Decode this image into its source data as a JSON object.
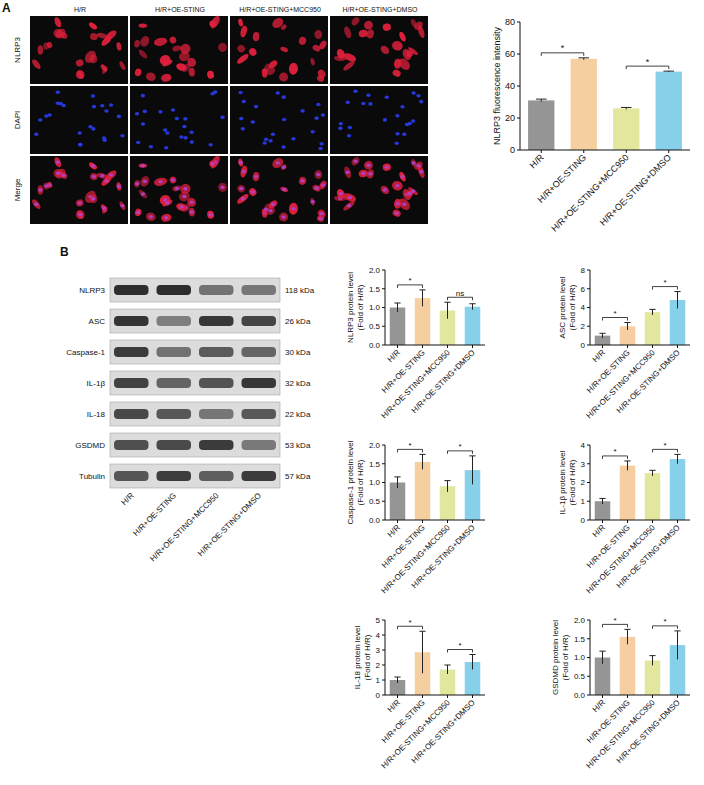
{
  "panel_a": {
    "letter": "A",
    "image_rows": [
      "NLRP3",
      "DAPI",
      "Merge"
    ],
    "image_columns": [
      "H/R",
      "H/R+OE-STING",
      "H/R+OE-STING+MCC950",
      "H/R+OE-STING+DMSO"
    ]
  },
  "panel_b": {
    "letter": "B",
    "blot": [
      {
        "name": "NLRP3",
        "size": "118 kDa"
      },
      {
        "name": "ASC",
        "size": "26 kDa"
      },
      {
        "name": "Caspase-1",
        "size": "30 kDa"
      },
      {
        "name": "IL-1β",
        "size": "32 kDa"
      },
      {
        "name": "IL-18",
        "size": "22 kDa"
      },
      {
        "name": "GSDMD",
        "size": "53 kDa"
      },
      {
        "name": "Tubulin",
        "size": "57 kDa"
      }
    ],
    "blot_lanes": [
      "H/R",
      "H/R+OE-STING",
      "H/R+OE-STING+MCC950",
      "H/R+OE-STING+DMSO"
    ]
  },
  "chart_data": [
    {
      "type": "bar",
      "ylabel": "NLRP3  fluorescence intensity",
      "categories": [
        "H/R",
        "H/R+OE-STING",
        "H/R+OE-STING+MCC950",
        "H/R+OE-STING+DMSO"
      ],
      "values": [
        31,
        57,
        26,
        49
      ],
      "errors": [
        0.8,
        0.6,
        0.6,
        0.3
      ],
      "colors": [
        "#959595",
        "#f6cfa0",
        "#e3e69d",
        "#87d0ea"
      ],
      "ylim": [
        0,
        80
      ],
      "yticks": [
        0,
        20,
        40,
        60,
        80
      ],
      "grid": false,
      "annotations": [
        {
          "text": "*",
          "between": [
            0,
            1
          ]
        },
        {
          "text": "*",
          "between": [
            2,
            3
          ]
        }
      ]
    },
    {
      "type": "bar",
      "ylabel": "NLRP3 protein level (Fold of H/R)",
      "categories": [
        "H/R",
        "H/R+OE-STING",
        "H/R+OE-STING+MCC950",
        "H/R+OE-STING+DMSO"
      ],
      "values": [
        1.0,
        1.25,
        0.92,
        1.02
      ],
      "errors": [
        0.12,
        0.22,
        0.22,
        0.08
      ],
      "colors": [
        "#959595",
        "#f6cfa0",
        "#e3e69d",
        "#87d0ea"
      ],
      "ylim": [
        0,
        2
      ],
      "yticks": [
        {
          "value": 0,
          "label": "0.0"
        },
        {
          "value": 0.5,
          "label": "0.5"
        },
        {
          "value": 1,
          "label": "1.0"
        },
        {
          "value": 1.5,
          "label": "1.5"
        },
        {
          "value": 2,
          "label": "2.0"
        }
      ],
      "grid": false,
      "annotations": [
        {
          "text": "*",
          "between": [
            0,
            1
          ]
        },
        {
          "text": "ns",
          "between": [
            2,
            3
          ]
        }
      ]
    },
    {
      "type": "bar",
      "ylabel": "ASC protein level (Fold of H/R)",
      "categories": [
        "H/R",
        "H/R+OE-STING",
        "H/R+OE-STING+MCC950",
        "H/R+OE-STING+DMSO"
      ],
      "values": [
        1.0,
        2.0,
        3.5,
        4.8
      ],
      "errors": [
        0.25,
        0.4,
        0.3,
        0.9
      ],
      "colors": [
        "#959595",
        "#f6cfa0",
        "#e3e69d",
        "#87d0ea"
      ],
      "ylim": [
        0,
        8
      ],
      "yticks": [
        0,
        2,
        4,
        6,
        8
      ],
      "grid": false,
      "annotations": [
        {
          "text": "*",
          "between": [
            0,
            1
          ]
        },
        {
          "text": "*",
          "between": [
            2,
            3
          ]
        }
      ]
    },
    {
      "type": "bar",
      "ylabel": "Caspase-1 protein level (Fold of H/R)",
      "categories": [
        "H/R",
        "H/R+OE-STING",
        "H/R+OE-STING+MCC950",
        "H/R+OE-STING+DMSO"
      ],
      "values": [
        1.0,
        1.55,
        0.9,
        1.33
      ],
      "errors": [
        0.15,
        0.2,
        0.15,
        0.38
      ],
      "colors": [
        "#959595",
        "#f6cfa0",
        "#e3e69d",
        "#87d0ea"
      ],
      "ylim": [
        0,
        2
      ],
      "yticks": [
        {
          "value": 0,
          "label": "0.0"
        },
        {
          "value": 0.5,
          "label": "0.5"
        },
        {
          "value": 1,
          "label": "1.0"
        },
        {
          "value": 1.5,
          "label": "1.5"
        },
        {
          "value": 2,
          "label": "2.0"
        }
      ],
      "grid": false,
      "annotations": [
        {
          "text": "*",
          "between": [
            0,
            1
          ]
        },
        {
          "text": "*",
          "between": [
            2,
            3
          ]
        }
      ]
    },
    {
      "type": "bar",
      "ylabel": "IL-1β protein level (Fold of H/R)",
      "categories": [
        "H/R",
        "H/R+OE-STING",
        "H/R+OE-STING+MCC950",
        "H/R+OE-STING+DMSO"
      ],
      "values": [
        1.0,
        2.9,
        2.5,
        3.25
      ],
      "errors": [
        0.15,
        0.25,
        0.15,
        0.25
      ],
      "colors": [
        "#959595",
        "#f6cfa0",
        "#e3e69d",
        "#87d0ea"
      ],
      "ylim": [
        0,
        4
      ],
      "yticks": [
        0,
        1,
        2,
        3,
        4
      ],
      "grid": false,
      "annotations": [
        {
          "text": "*",
          "between": [
            0,
            1
          ]
        },
        {
          "text": "*",
          "between": [
            2,
            3
          ]
        }
      ]
    },
    {
      "type": "bar",
      "ylabel": "IL-18 protein level (Fold of H/R)",
      "categories": [
        "H/R",
        "H/R+OE-STING",
        "H/R+OE-STING+MCC950",
        "H/R+OE-STING+DMSO"
      ],
      "values": [
        1.0,
        2.85,
        1.7,
        2.2
      ],
      "errors": [
        0.2,
        1.4,
        0.3,
        0.5
      ],
      "colors": [
        "#959595",
        "#f6cfa0",
        "#e3e69d",
        "#87d0ea"
      ],
      "ylim": [
        0,
        5
      ],
      "yticks": [
        0,
        1,
        2,
        3,
        4,
        5
      ],
      "grid": false,
      "annotations": [
        {
          "text": "*",
          "between": [
            0,
            1
          ]
        },
        {
          "text": "*",
          "between": [
            2,
            3
          ]
        }
      ]
    },
    {
      "type": "bar",
      "ylabel": "GSDMD protein level (Fold of H/R)",
      "categories": [
        "H/R",
        "H/R+OE-STING",
        "H/R+OE-STING+MCC950",
        "H/R+OE-STING+DMSO"
      ],
      "values": [
        1.0,
        1.55,
        0.92,
        1.33
      ],
      "errors": [
        0.17,
        0.2,
        0.13,
        0.38
      ],
      "colors": [
        "#959595",
        "#f6cfa0",
        "#e3e69d",
        "#87d0ea"
      ],
      "ylim": [
        0,
        2
      ],
      "yticks": [
        {
          "value": 0,
          "label": "0.0"
        },
        {
          "value": 0.5,
          "label": "0.5"
        },
        {
          "value": 1,
          "label": "1.0"
        },
        {
          "value": 1.5,
          "label": "1.5"
        },
        {
          "value": 2,
          "label": "2.0"
        }
      ],
      "grid": false,
      "annotations": [
        {
          "text": "*",
          "between": [
            0,
            1
          ]
        },
        {
          "text": "*",
          "between": [
            2,
            3
          ]
        }
      ]
    }
  ]
}
